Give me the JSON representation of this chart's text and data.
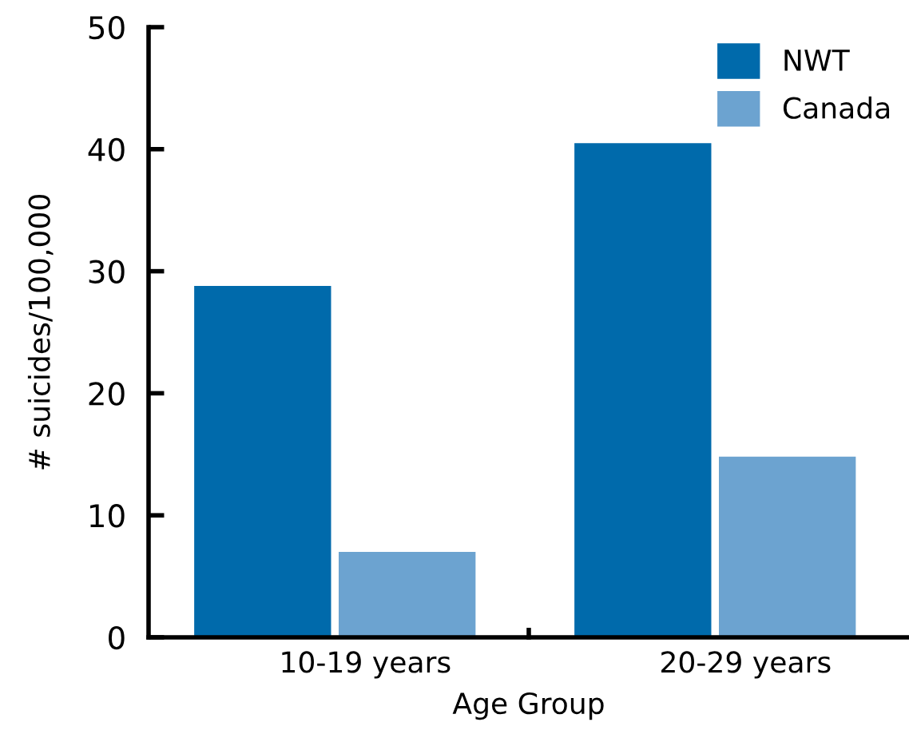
{
  "chart_data": {
    "type": "bar",
    "xlabel": "Age Group",
    "ylabel": "# suicides/100,000",
    "categories": [
      "10-19 years",
      "20-29 years"
    ],
    "series": [
      {
        "name": "NWT",
        "color": "#006aab",
        "values": [
          28.8,
          40.5
        ]
      },
      {
        "name": "Canada",
        "color": "#6ca3d0",
        "values": [
          7.0,
          14.8
        ]
      }
    ],
    "ylim": [
      0,
      50
    ],
    "yticks": [
      0,
      10,
      20,
      30,
      40,
      50
    ],
    "grid": false,
    "legend": "top right"
  }
}
